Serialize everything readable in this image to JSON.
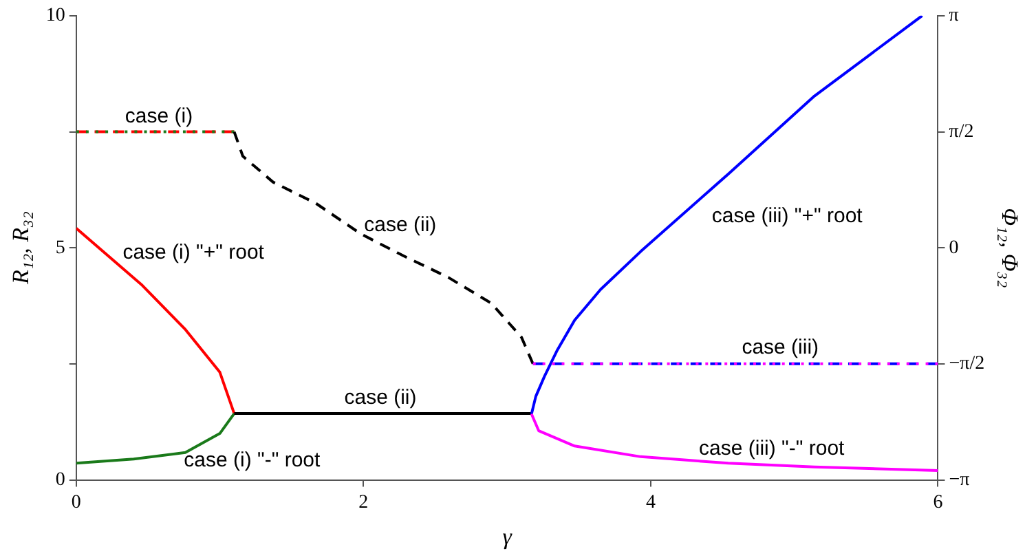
{
  "chart_data": {
    "type": "line",
    "xlabel": "γ",
    "ylabel": "R₁₂, R₃₂",
    "y2label": "Φ₁₂, Φ₃₂",
    "xlim": [
      0,
      6
    ],
    "xticks": [
      0,
      2,
      4,
      6
    ],
    "ylim": [
      0,
      10
    ],
    "yticks": [
      0,
      {
        "value": 2.5,
        "label": null
      },
      5,
      {
        "value": 7.5,
        "label": null
      },
      10
    ],
    "y2lim": [
      -3.1416,
      3.1416
    ],
    "y2ticks": [
      {
        "value": -3.1416,
        "label": "−π"
      },
      {
        "value": -1.5708,
        "label": "−π/2"
      },
      0,
      {
        "value": 1.5708,
        "label": "π/2"
      },
      {
        "value": 3.1416,
        "label": "π"
      }
    ],
    "grid": false,
    "legend": false,
    "marker": "none",
    "series": [
      {
        "color": "#ff0000",
        "line_style": "solid",
        "x": [
          0,
          0.46,
          0.76,
          1.0,
          1.1
        ],
        "values": [
          5.42,
          4.19,
          3.24,
          2.32,
          1.43
        ]
      },
      {
        "color": "#1a7a1a",
        "line_style": "solid",
        "x": [
          0,
          0.4,
          0.76,
          1.0,
          1.1
        ],
        "values": [
          0.36,
          0.45,
          0.59,
          1.0,
          1.43
        ]
      },
      {
        "color": "#000000",
        "line_style": "solid",
        "x": [
          1.1,
          3.17
        ],
        "values": [
          1.43,
          1.43
        ]
      },
      {
        "color": "#0000ff",
        "line_style": "solid",
        "x": [
          3.17,
          3.2,
          3.26,
          3.35,
          3.47,
          3.65,
          3.93,
          4.54,
          5.14,
          5.89
        ],
        "values": [
          1.42,
          1.8,
          2.23,
          2.8,
          3.44,
          4.1,
          4.92,
          6.59,
          8.27,
          10
        ]
      },
      {
        "color": "#ff00ff",
        "line_style": "solid",
        "x": [
          3.17,
          3.22,
          3.47,
          3.93,
          4.54,
          5.14,
          6
        ],
        "values": [
          1.42,
          1.06,
          0.73,
          0.5,
          0.36,
          0.28,
          0.2
        ]
      },
      {
        "color": "#ff0000",
        "line_style": "dashed",
        "axis": "y2",
        "x": [
          0,
          1.1
        ],
        "values": [
          1.57,
          1.57
        ]
      },
      {
        "color": "#1a7a1a",
        "line_style": "dotted",
        "axis": "y2",
        "x": [
          0,
          1.1
        ],
        "values": [
          1.57,
          1.57
        ]
      },
      {
        "color": "#000000",
        "line_style": "dashed",
        "axis": "y2",
        "x": [
          1.1,
          1.16,
          1.37,
          1.67,
          1.98,
          2.28,
          2.59,
          2.89,
          3.1,
          3.18
        ],
        "values": [
          1.57,
          1.24,
          0.89,
          0.6,
          0.19,
          -0.11,
          -0.4,
          -0.75,
          -1.21,
          -1.57
        ]
      },
      {
        "color": "#0000ff",
        "line_style": "dashed",
        "axis": "y2",
        "x": [
          3.18,
          6
        ],
        "values": [
          -1.57,
          -1.57
        ]
      },
      {
        "color": "#ff00ff",
        "line_style": "dotted",
        "axis": "y2",
        "x": [
          3.18,
          6
        ],
        "values": [
          -1.57,
          -1.57
        ]
      }
    ],
    "annotations": [
      "case (i)",
      "case (ii)",
      "case (i) \"+\" root",
      "case (ii)",
      "case (i) \"-\" root",
      "case (iii) \"+\" root",
      "case (iii)",
      "case (iii) \"-\" root"
    ]
  }
}
